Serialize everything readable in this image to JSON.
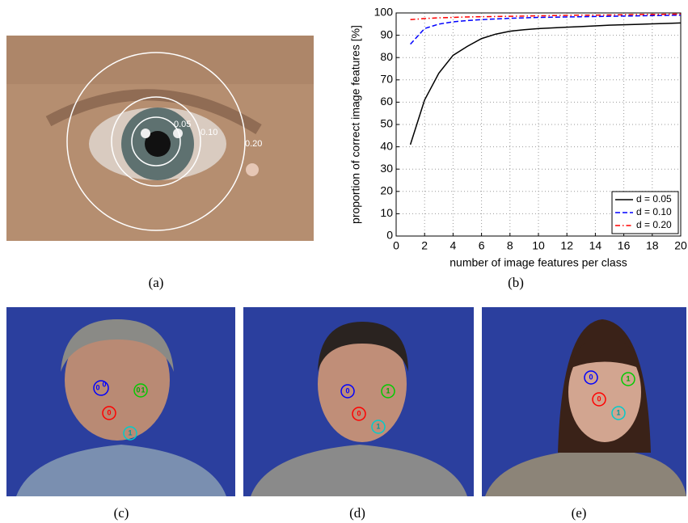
{
  "panels": {
    "a": "(a)",
    "b": "(b)",
    "c": "(c)",
    "d": "(d)",
    "e": "(e)"
  },
  "eye_radii_labels": [
    "0.05",
    "0.10",
    "0.20"
  ],
  "face_markers": {
    "c": [
      "0",
      "0",
      "0",
      "1",
      "0",
      "1"
    ],
    "d": [
      "0",
      "1",
      "0",
      "1"
    ],
    "e": [
      "0",
      "1",
      "0",
      "1"
    ]
  },
  "chart_data": {
    "type": "line",
    "x_label": "number of image features per class",
    "y_label": "proportion of correct image features [%]",
    "x": [
      1,
      2,
      3,
      4,
      5,
      6,
      7,
      8,
      9,
      10,
      11,
      12,
      13,
      14,
      15,
      16,
      17,
      18,
      19,
      20
    ],
    "series": [
      {
        "name": "d = 0.05",
        "color": "#000000",
        "style": "solid",
        "values": [
          41,
          61,
          73,
          81,
          85,
          88.5,
          90.5,
          91.8,
          92.5,
          93,
          93.3,
          93.6,
          93.9,
          94.2,
          94.5,
          94.7,
          94.9,
          95.1,
          95.3,
          95.5
        ]
      },
      {
        "name": "d = 0.10",
        "color": "#0000ff",
        "style": "dashed",
        "values": [
          86,
          93,
          95,
          96,
          96.6,
          97,
          97.3,
          97.6,
          97.8,
          98,
          98.1,
          98.2,
          98.3,
          98.4,
          98.5,
          98.6,
          98.7,
          98.8,
          98.9,
          99
        ]
      },
      {
        "name": "d = 0.20",
        "color": "#ff0000",
        "style": "dashdot",
        "values": [
          97,
          97.5,
          97.8,
          98,
          98.2,
          98.3,
          98.4,
          98.5,
          98.6,
          98.7,
          98.8,
          98.9,
          99,
          99,
          99.1,
          99.2,
          99.3,
          99.3,
          99.4,
          99.5
        ]
      }
    ],
    "xlim": [
      0,
      20
    ],
    "xticks": [
      0,
      2,
      4,
      6,
      8,
      10,
      12,
      14,
      16,
      18,
      20
    ],
    "ylim": [
      0,
      100
    ],
    "yticks": [
      0,
      10,
      20,
      30,
      40,
      50,
      60,
      70,
      80,
      90,
      100
    ],
    "grid": true,
    "legend": "lower right"
  }
}
